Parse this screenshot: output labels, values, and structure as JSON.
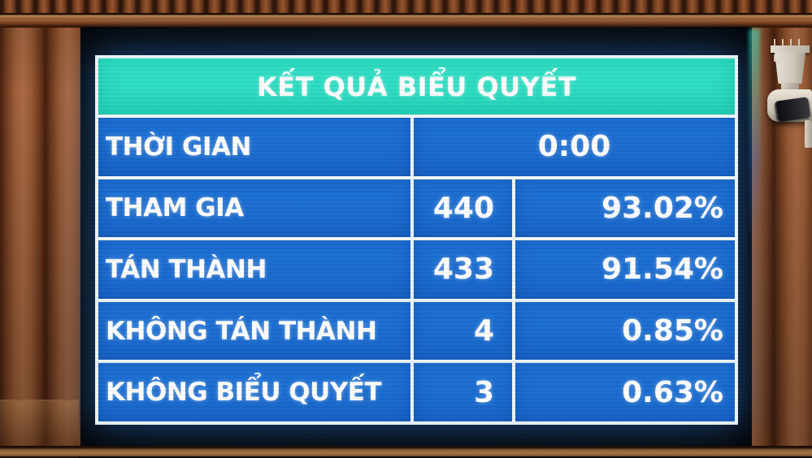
{
  "board": {
    "title": "KẾT QUẢ BIỂU QUYẾT",
    "time_row": {
      "label": "THỜI GIAN",
      "value": "0:00"
    },
    "rows": [
      {
        "label": "THAM GIA",
        "count": "440",
        "percent": "93.02%"
      },
      {
        "label": "TÁN THÀNH",
        "count": "433",
        "percent": "91.54%"
      },
      {
        "label": "KHÔNG TÁN THÀNH",
        "count": "4",
        "percent": "0.85%"
      },
      {
        "label": "KHÔNG BIỂU QUYẾT",
        "count": "3",
        "percent": "0.63%"
      }
    ],
    "colors": {
      "header_bg": "#2ddfc5",
      "cell_bg": "#1b6ed2",
      "grid_lines": "#eef6f7",
      "text": "#ffffff",
      "bezel": "#0a0c10"
    }
  },
  "chart_data": {
    "type": "table",
    "title": "KẾT QUẢ BIỂU QUYẾT",
    "columns": [
      "label",
      "count",
      "percent"
    ],
    "rows": [
      [
        "THỜI GIAN",
        "0:00",
        ""
      ],
      [
        "THAM GIA",
        440,
        "93.02%"
      ],
      [
        "TÁN THÀNH",
        433,
        "91.54%"
      ],
      [
        "KHÔNG TÁN THÀNH",
        4,
        "0.85%"
      ],
      [
        "KHÔNG BIỂU QUYẾT",
        3,
        "0.63%"
      ]
    ]
  }
}
